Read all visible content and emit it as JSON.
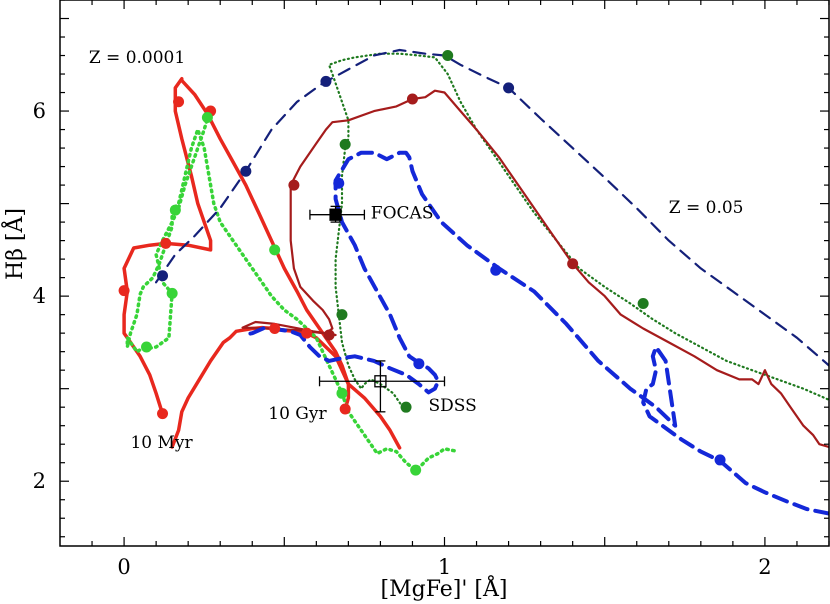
{
  "chart_data": {
    "type": "line",
    "title": "",
    "xlabel": "[MgFe]' [Å]",
    "ylabel": "Hβ [Å]",
    "xlim": [
      -0.2,
      2.2
    ],
    "ylim": [
      1.3,
      7.2
    ],
    "x_ticks": [
      0,
      1,
      2
    ],
    "x_tick_labels": [
      "0",
      "1",
      "2"
    ],
    "y_ticks": [
      2,
      4,
      6
    ],
    "y_tick_labels": [
      "2",
      "4",
      "6"
    ],
    "grid": false,
    "legend": "none",
    "series": [
      {
        "style": "solid",
        "color": "#e8281e",
        "width": 3.5,
        "x": [
          0.15,
          0.17,
          0.18,
          0.2,
          0.27,
          0.31,
          0.33,
          0.35,
          0.4,
          0.43,
          0.47,
          0.5,
          0.53,
          0.57,
          0.6,
          0.63,
          0.66,
          0.68,
          0.7,
          0.75,
          0.8,
          0.83,
          0.86
        ],
        "y": [
          2.37,
          2.55,
          2.75,
          2.9,
          3.3,
          3.5,
          3.55,
          3.62,
          3.65,
          3.66,
          3.65,
          3.63,
          3.62,
          3.6,
          3.55,
          3.45,
          3.35,
          3.2,
          3.05,
          2.9,
          2.7,
          2.55,
          2.36
        ]
      },
      {
        "style": "solid",
        "color": "#e8281e",
        "width": 3.5,
        "x": [
          0.12,
          0.1,
          0.08,
          0.05,
          0.02,
          0.0,
          0.0,
          0.01,
          0.0,
          0.03,
          0.08,
          0.13,
          0.2,
          0.27,
          0.27,
          0.23,
          0.21,
          0.18,
          0.16,
          0.16,
          0.18,
          0.18,
          0.22,
          0.26,
          0.3,
          0.34,
          0.38,
          0.42,
          0.46,
          0.5,
          0.54,
          0.57,
          0.6,
          0.63,
          0.66,
          0.68,
          0.7,
          0.7,
          0.69
        ],
        "y": [
          2.73,
          2.95,
          3.15,
          3.35,
          3.5,
          3.6,
          3.8,
          4.05,
          4.3,
          4.52,
          4.55,
          4.57,
          4.55,
          4.5,
          4.6,
          5.0,
          5.3,
          5.7,
          6.0,
          6.25,
          6.35,
          6.33,
          6.18,
          5.97,
          5.7,
          5.45,
          5.2,
          4.9,
          4.6,
          4.3,
          4.05,
          3.85,
          3.7,
          3.55,
          3.4,
          3.25,
          3.05,
          2.9,
          2.78
        ]
      },
      {
        "style": "dotted",
        "color": "#38d438",
        "width": 3.5,
        "x": [
          1.03,
          1.0,
          0.98,
          0.95,
          0.93,
          0.91,
          0.88,
          0.85,
          0.82,
          0.79,
          0.76,
          0.73,
          0.7,
          0.68,
          0.66,
          0.64,
          0.62,
          0.6,
          0.57,
          0.54,
          0.5,
          0.46,
          0.42,
          0.38,
          0.34,
          0.3,
          0.28,
          0.27,
          0.26,
          0.25,
          0.23,
          0.21,
          0.19,
          0.17,
          0.15,
          0.15,
          0.13,
          0.11,
          0.09,
          0.06,
          0.05,
          0.04,
          0.02,
          0.01,
          0.01,
          0.03,
          0.04,
          0.05,
          0.1,
          0.14,
          0.15,
          0.12,
          0.11,
          0.1,
          0.12,
          0.15,
          0.17,
          0.19,
          0.21,
          0.23,
          0.25,
          0.26,
          0.27
        ],
        "y": [
          2.33,
          2.35,
          2.3,
          2.25,
          2.18,
          2.12,
          2.2,
          2.32,
          2.35,
          2.3,
          2.45,
          2.6,
          2.75,
          2.95,
          3.1,
          3.25,
          3.4,
          3.55,
          3.65,
          3.75,
          3.85,
          4.0,
          4.2,
          4.4,
          4.6,
          4.8,
          5.0,
          5.2,
          5.4,
          5.6,
          5.8,
          5.6,
          5.3,
          5.0,
          4.93,
          4.75,
          4.55,
          4.35,
          4.2,
          4.1,
          4.02,
          3.8,
          3.6,
          3.45,
          3.55,
          3.45,
          3.4,
          3.42,
          3.45,
          3.55,
          4.03,
          4.15,
          4.3,
          4.45,
          4.6,
          4.8,
          4.95,
          5.2,
          5.4,
          5.6,
          5.8,
          5.92,
          5.93
        ]
      },
      {
        "style": "dotted",
        "color": "#1f7a1f",
        "width": 2.2,
        "x": [
          0.87,
          0.84,
          0.8,
          0.77,
          0.75,
          0.74,
          0.72,
          0.7,
          0.68,
          0.67,
          0.66,
          0.66,
          0.67,
          0.68,
          0.68,
          0.69,
          0.7,
          0.7,
          0.69,
          0.68,
          0.67,
          0.66,
          0.65,
          0.64,
          0.68,
          0.72,
          0.76,
          0.8,
          0.86,
          0.92,
          0.97,
          1.01,
          1.05,
          1.1,
          1.16,
          1.22,
          1.28,
          1.35,
          1.42,
          1.5,
          1.58,
          1.65,
          1.72,
          1.8,
          1.88,
          1.96,
          2.04,
          2.12,
          2.2
        ],
        "y": [
          2.8,
          2.95,
          3.05,
          3.1,
          3.05,
          3.0,
          3.1,
          3.25,
          3.5,
          3.8,
          4.1,
          4.4,
          4.7,
          5.0,
          5.3,
          5.6,
          5.7,
          5.9,
          6.0,
          6.1,
          6.2,
          6.3,
          6.4,
          6.5,
          6.55,
          6.58,
          6.6,
          6.62,
          6.62,
          6.6,
          6.58,
          6.4,
          6.1,
          5.8,
          5.5,
          5.2,
          4.9,
          4.6,
          4.3,
          4.1,
          3.92,
          3.75,
          3.6,
          3.45,
          3.3,
          3.2,
          3.1,
          3.0,
          2.88
        ]
      },
      {
        "style": "solid",
        "color": "#a51c1c",
        "width": 2.2,
        "x": [
          2.22,
          2.17,
          2.15,
          2.12,
          2.08,
          2.05,
          2.02,
          2.0,
          1.98,
          1.96,
          1.92,
          1.85,
          1.78,
          1.7,
          1.62,
          1.55,
          1.5,
          1.45,
          1.4,
          1.33,
          1.25,
          1.17,
          1.1,
          1.05,
          1.0,
          0.97,
          0.94,
          0.9,
          0.85,
          0.78,
          0.7,
          0.65,
          0.63,
          0.6,
          0.55,
          0.52,
          0.52,
          0.53,
          0.55,
          0.59,
          0.62,
          0.64,
          0.65,
          0.63,
          0.59,
          0.53,
          0.47,
          0.41,
          0.37,
          0.45,
          0.55,
          0.62,
          0.66
        ],
        "y": [
          2.35,
          2.4,
          2.5,
          2.6,
          2.8,
          2.95,
          3.05,
          3.2,
          3.05,
          3.1,
          3.1,
          3.2,
          3.35,
          3.5,
          3.65,
          3.8,
          4.0,
          4.15,
          4.35,
          4.7,
          5.1,
          5.5,
          5.8,
          6.0,
          6.2,
          6.22,
          6.15,
          6.13,
          6.05,
          6.0,
          5.9,
          5.88,
          5.8,
          5.65,
          5.4,
          5.2,
          4.6,
          4.3,
          4.1,
          3.95,
          3.85,
          3.75,
          3.65,
          3.6,
          3.62,
          3.66,
          3.7,
          3.72,
          3.66,
          3.65,
          3.63,
          3.6,
          3.58
        ]
      },
      {
        "style": "dashed",
        "color": "#1428d8",
        "width": 4,
        "x": [
          2.2,
          2.13,
          2.07,
          2.0,
          1.94,
          1.9,
          1.86,
          1.8,
          1.74,
          1.68,
          1.64,
          1.62,
          1.63,
          1.65,
          1.66,
          1.65,
          1.66,
          1.69,
          1.72,
          1.66,
          1.58,
          1.48,
          1.38,
          1.28,
          1.17,
          1.07,
          0.99,
          0.93,
          0.9,
          0.89,
          0.88,
          0.86,
          0.82,
          0.78,
          0.74,
          0.7,
          0.66,
          0.66,
          0.68,
          0.72,
          0.75,
          0.79,
          0.83,
          0.86,
          0.89,
          0.92,
          0.95,
          0.97,
          0.98,
          0.97,
          0.95,
          0.92,
          0.88,
          0.83,
          0.78,
          0.72,
          0.68,
          0.64,
          0.61,
          0.58,
          0.55,
          0.52,
          0.48,
          0.44,
          0.4,
          0.37
        ],
        "y": [
          1.65,
          1.7,
          1.78,
          1.88,
          1.98,
          2.1,
          2.22,
          2.32,
          2.45,
          2.6,
          2.7,
          2.85,
          3.0,
          3.05,
          3.2,
          3.35,
          3.45,
          3.3,
          2.6,
          2.8,
          3.0,
          3.3,
          3.7,
          4.05,
          4.3,
          4.55,
          4.8,
          5.1,
          5.35,
          5.5,
          5.55,
          5.55,
          5.48,
          5.55,
          5.55,
          5.48,
          5.25,
          5.05,
          4.8,
          4.55,
          4.3,
          4.05,
          3.8,
          3.55,
          3.35,
          3.28,
          3.22,
          3.15,
          3.08,
          3.0,
          2.96,
          3.05,
          3.15,
          3.22,
          3.3,
          3.35,
          3.33,
          3.3,
          3.35,
          3.45,
          3.58,
          3.62,
          3.64,
          3.66,
          3.6,
          3.58
        ]
      },
      {
        "style": "dashed",
        "color": "#14207a",
        "width": 2.2,
        "x": [
          0.1,
          0.12,
          0.16,
          0.22,
          0.3,
          0.38,
          0.46,
          0.54,
          0.62,
          0.7,
          0.78,
          0.86,
          0.94,
          1.0,
          1.05,
          1.12,
          1.2,
          1.3,
          1.4,
          1.5,
          1.6,
          1.7,
          1.8,
          1.9,
          2.0,
          2.1,
          2.2
        ],
        "y": [
          4.15,
          4.25,
          4.45,
          4.65,
          4.95,
          5.35,
          5.8,
          6.1,
          6.3,
          6.45,
          6.6,
          6.66,
          6.62,
          6.6,
          6.5,
          6.38,
          6.25,
          5.92,
          5.6,
          5.28,
          4.95,
          4.6,
          4.3,
          4.05,
          3.8,
          3.55,
          3.25
        ]
      }
    ],
    "markers": [
      {
        "color": "#e8281e",
        "points": [
          [
            0.12,
            2.73
          ],
          [
            0.0,
            4.06
          ],
          [
            0.13,
            4.57
          ],
          [
            0.17,
            6.1
          ],
          [
            0.27,
            6.0
          ],
          [
            0.47,
            3.65
          ],
          [
            0.57,
            3.6
          ],
          [
            0.69,
            2.78
          ]
        ]
      },
      {
        "color": "#38d438",
        "points": [
          [
            0.91,
            2.12
          ],
          [
            0.68,
            2.95
          ],
          [
            0.07,
            3.45
          ],
          [
            0.15,
            4.03
          ],
          [
            0.16,
            4.93
          ],
          [
            0.26,
            5.93
          ],
          [
            0.47,
            4.5
          ]
        ]
      },
      {
        "color": "#1f7a1f",
        "points": [
          [
            0.88,
            2.8
          ],
          [
            0.68,
            3.8
          ],
          [
            0.69,
            5.64
          ],
          [
            1.01,
            6.6
          ],
          [
            1.62,
            3.92
          ]
        ]
      },
      {
        "color": "#a51c1c",
        "points": [
          [
            0.53,
            5.2
          ],
          [
            0.9,
            6.13
          ],
          [
            1.4,
            4.35
          ],
          [
            0.64,
            3.58
          ]
        ]
      },
      {
        "color": "#1428d8",
        "points": [
          [
            0.67,
            5.22
          ],
          [
            1.16,
            4.28
          ],
          [
            0.92,
            3.27
          ],
          [
            1.86,
            2.23
          ]
        ]
      },
      {
        "color": "#14207a",
        "points": [
          [
            0.12,
            4.22
          ],
          [
            0.38,
            5.35
          ],
          [
            0.63,
            6.32
          ],
          [
            1.2,
            6.25
          ]
        ]
      }
    ],
    "observations": [
      {
        "label": "FOCAS",
        "x": 0.66,
        "y": 4.88,
        "xerr": [
          0.58,
          0.75
        ],
        "yerr": [
          4.8,
          4.97
        ],
        "marker": "filled-square"
      },
      {
        "label": "SDSS",
        "x": 0.8,
        "y": 3.08,
        "xerr": [
          0.61,
          1.0
        ],
        "yerr": [
          2.75,
          3.3
        ],
        "marker": "open-square"
      }
    ],
    "annotations": [
      {
        "text": "Z = 0.0001",
        "x": -0.11,
        "y": 6.52
      },
      {
        "text": "Z = 0.05",
        "x": 1.7,
        "y": 4.9
      },
      {
        "text": "10 Myr",
        "x": 0.02,
        "y": 2.36
      },
      {
        "text": "10 Gyr",
        "x": 0.45,
        "y": 2.67
      },
      {
        "text": "FOCAS",
        "x": 0.77,
        "y": 4.84
      },
      {
        "text": "SDSS",
        "x": 0.95,
        "y": 2.76
      }
    ]
  }
}
